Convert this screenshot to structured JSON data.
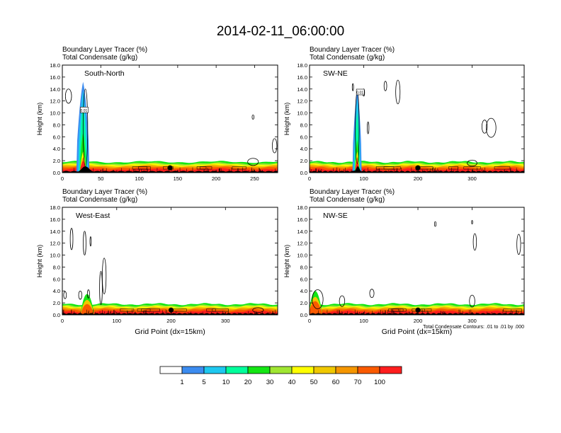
{
  "title": "2014-02-11_06:00:00",
  "panel_header_line1": "Boundary Layer Tracer   (%)",
  "panel_header_line2": "Total Condensate   (g/kg)",
  "contour_note": "Total Condensate Contours: .01 to .01 by .000",
  "colors": {
    "levels": [
      "#ffffff",
      "#3c8cf0",
      "#1ec8f0",
      "#00ff9c",
      "#14e614",
      "#a0e632",
      "#ffff00",
      "#f0c800",
      "#f59600",
      "#fa5a00",
      "#ff1e1e"
    ],
    "land": "#000000"
  },
  "colorbar_labels": [
    "1",
    "5",
    "10",
    "20",
    "30",
    "40",
    "50",
    "60",
    "70",
    "100"
  ],
  "chart_data": [
    {
      "type": "heatmap",
      "panel": "South-North",
      "label": "South-North",
      "xlim": [
        0,
        280
      ],
      "ylim": [
        0,
        18
      ],
      "xticks": [
        0,
        50,
        100,
        150,
        200,
        250
      ],
      "yticks": [
        "0.0",
        "2.0",
        "4.0",
        "6.0",
        "8.0",
        "10.0",
        "12.0",
        "14.0",
        "16.0",
        "18.0"
      ],
      "ylabel": "Height (km)",
      "xlabel": "",
      "marker_x": 140,
      "plume_x": 27,
      "plume_top_km": 15.2,
      "contour_box_label": "0.01"
    },
    {
      "type": "heatmap",
      "panel": "SW-NE",
      "label": "SW-NE",
      "xlim": [
        0,
        396
      ],
      "ylim": [
        0,
        18
      ],
      "xticks": [
        0,
        100,
        200,
        300
      ],
      "yticks": [
        "0.0",
        "2.0",
        "4.0",
        "6.0",
        "8.0",
        "10.0",
        "12.0",
        "14.0",
        "16.0",
        "18.0"
      ],
      "ylabel": "Height (km)",
      "xlabel": "",
      "marker_x": 200,
      "plume_x": 88,
      "plume_top_km": 14.0,
      "contour_box_label": "0.01"
    },
    {
      "type": "heatmap",
      "panel": "West-East",
      "label": "West-East",
      "xlim": [
        0,
        396
      ],
      "ylim": [
        0,
        18
      ],
      "xticks": [
        0,
        100,
        200,
        300
      ],
      "yticks": [
        "0.0",
        "2.0",
        "4.0",
        "6.0",
        "8.0",
        "10.0",
        "12.0",
        "14.0",
        "16.0",
        "18.0"
      ],
      "ylabel": "Height (km)",
      "xlabel": "Grid Point (dx=15km)",
      "marker_x": 200,
      "plume_x": 45,
      "plume_top_km": 2.5
    },
    {
      "type": "heatmap",
      "panel": "NW-SE",
      "label": "NW-SE",
      "xlim": [
        0,
        396
      ],
      "ylim": [
        0,
        18
      ],
      "xticks": [
        0,
        100,
        200,
        300
      ],
      "yticks": [
        "0.0",
        "2.0",
        "4.0",
        "6.0",
        "8.0",
        "10.0",
        "12.0",
        "14.0",
        "16.0",
        "18.0"
      ],
      "ylabel": "Height (km)",
      "xlabel": "Grid Point (dx=15km)",
      "marker_x": 200,
      "plume_x": 10,
      "plume_top_km": 3.0
    }
  ]
}
